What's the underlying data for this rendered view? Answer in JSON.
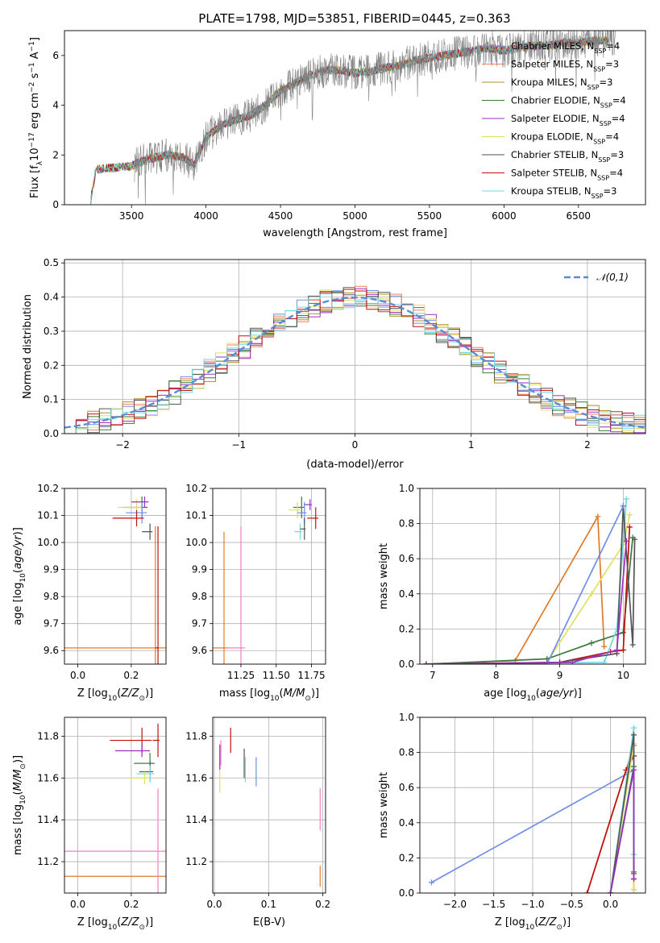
{
  "title": "PLATE=1798, MJD=53851, FIBERID=0445, z=0.363",
  "colors": {
    "chabrier_miles": "#6f8ee8",
    "salpeter_miles": "#f08060",
    "kroupa_miles": "#b09020",
    "chabrier_elodie": "#3a7a3a",
    "salpeter_elodie": "#9a2fc0",
    "kroupa_elodie": "#e0e060",
    "chabrier_stelib": "#555555",
    "salpeter_stelib": "#c01010",
    "kroupa_stelib": "#70d8e0",
    "data": "#808080",
    "gaussian": "#5b8bd8",
    "orange": "#e07b28",
    "pink": "#f080c0"
  },
  "chart_data": [
    {
      "id": "spectrum",
      "type": "line",
      "xlabel": "wavelength [Angstrom, rest frame]",
      "ylabel": "Flux [f_λ 10^-17 erg cm^-2 s^-1 A^-1]",
      "xlim": [
        3050,
        6950
      ],
      "ylim": [
        0,
        7
      ],
      "xticks": [
        "3500",
        "4000",
        "4500",
        "5000",
        "5500",
        "6000",
        "6500"
      ],
      "yticks": [
        "0",
        "2",
        "4",
        "6"
      ],
      "legend_position": "top-right",
      "legend": [
        "Chabrier MILES, N_SSP=4",
        "Salpeter MILES, N_SSP=3",
        "Kroupa MILES, N_SSP=3",
        "Chabrier ELODIE, N_SSP=4",
        "Salpeter ELODIE, N_SSP=4",
        "Kroupa ELODIE, N_SSP=4",
        "Chabrier STELIB, N_SSP=3",
        "Salpeter STELIB, N_SSP=4",
        "Kroupa STELIB, N_SSP=3"
      ],
      "trend": {
        "x": [
          3220,
          3260,
          3300,
          3400,
          3500,
          3550,
          3650,
          3750,
          3850,
          3920,
          4000,
          4100,
          4200,
          4300,
          4400,
          4500,
          4600,
          4700,
          4800,
          4900,
          5000,
          5100,
          5200,
          5300,
          5400,
          5500,
          5600,
          5700,
          5800,
          5900,
          6000,
          6100,
          6200,
          6300,
          6400,
          6500,
          6600,
          6700
        ],
        "y": [
          0,
          1.4,
          1.45,
          1.5,
          1.55,
          1.7,
          1.9,
          2.0,
          1.9,
          1.6,
          2.7,
          3.2,
          3.4,
          3.6,
          4.0,
          4.6,
          4.9,
          5.2,
          5.4,
          5.4,
          5.3,
          5.35,
          5.5,
          5.6,
          5.8,
          5.9,
          6.0,
          6.1,
          6.2,
          6.3,
          6.2,
          6.3,
          6.4,
          6.4,
          6.5,
          6.5,
          6.6,
          6.6
        ]
      }
    },
    {
      "id": "residuals",
      "type": "line",
      "xlabel": "(data-model)/error",
      "ylabel": "Normed distribution",
      "xlim": [
        -2.5,
        2.5
      ],
      "ylim": [
        0,
        0.51
      ],
      "xticks": [
        "−2",
        "−1",
        "0",
        "1",
        "2"
      ],
      "yticks": [
        "0.0",
        "0.1",
        "0.2",
        "0.3",
        "0.4",
        "0.5"
      ],
      "legend_position": "top-right",
      "legend": [
        "𝒩(0,1)"
      ],
      "gaussian": {
        "mean": 0,
        "sigma": 1
      }
    },
    {
      "id": "age-vs-Z",
      "type": "scatter",
      "xlabel": "Z [log10(Z/Z⊙)]",
      "ylabel": "age [log10(age/yr)]",
      "xlim": [
        -0.05,
        0.33
      ],
      "ylim": [
        9.55,
        10.2
      ],
      "xticks": [
        "0.0",
        "0.2"
      ],
      "yticks": [
        "9.6",
        "9.7",
        "9.8",
        "9.9",
        "10.0",
        "10.1",
        "10.2"
      ],
      "points": [
        {
          "x": 0.29,
          "y": 9.61,
          "xerr": 0.35,
          "yerr": 0.45,
          "series": "orange"
        },
        {
          "x": 0.3,
          "y": 9.61,
          "xerr": 0.01,
          "yerr": 0.45,
          "series": "salpeter_stelib"
        },
        {
          "x": 0.24,
          "y": 10.13,
          "xerr": 0.07,
          "yerr": 0.04,
          "series": "chabrier_elodie"
        },
        {
          "x": 0.22,
          "y": 10.13,
          "xerr": 0.07,
          "yerr": 0.03,
          "series": "kroupa_elodie"
        },
        {
          "x": 0.24,
          "y": 10.11,
          "xerr": 0.06,
          "yerr": 0.04,
          "series": "chabrier_miles"
        },
        {
          "x": 0.22,
          "y": 10.09,
          "xerr": 0.09,
          "yerr": 0.03,
          "series": "salpeter_stelib"
        },
        {
          "x": 0.27,
          "y": 10.04,
          "xerr": 0.03,
          "yerr": 0.03,
          "series": "kroupa_stelib"
        },
        {
          "x": 0.27,
          "y": 10.04,
          "xerr": 0.03,
          "yerr": 0.03,
          "series": "chabrier_stelib"
        },
        {
          "x": 0.25,
          "y": 10.15,
          "xerr": 0.05,
          "yerr": 0.02,
          "series": "salpeter_elodie"
        }
      ]
    },
    {
      "id": "age-vs-mass",
      "type": "scatter",
      "xlabel": "mass [log10(M/M⊙)]",
      "ylabel": "",
      "xlim": [
        11.05,
        11.85
      ],
      "ylim": [
        9.55,
        10.2
      ],
      "xticks": [
        "11.25",
        "11.50",
        "11.75"
      ],
      "yticks": [
        "9.6",
        "9.7",
        "9.8",
        "9.9",
        "10.0",
        "10.1",
        "10.2"
      ],
      "points": [
        {
          "x": 11.13,
          "y": 9.61,
          "xerr": 0.1,
          "yerr": 0.43,
          "series": "orange"
        },
        {
          "x": 11.25,
          "y": 9.61,
          "xerr": 0.1,
          "yerr": 0.45,
          "series": "pink"
        },
        {
          "x": 11.68,
          "y": 10.13,
          "xerr": 0.06,
          "yerr": 0.04,
          "series": "chabrier_elodie"
        },
        {
          "x": 11.65,
          "y": 10.12,
          "xerr": 0.06,
          "yerr": 0.03,
          "series": "kroupa_elodie"
        },
        {
          "x": 11.7,
          "y": 10.11,
          "xerr": 0.05,
          "yerr": 0.04,
          "series": "chabrier_miles"
        },
        {
          "x": 11.78,
          "y": 10.09,
          "xerr": 0.06,
          "yerr": 0.04,
          "series": "salpeter_stelib"
        },
        {
          "x": 11.67,
          "y": 10.04,
          "xerr": 0.04,
          "yerr": 0.03,
          "series": "kroupa_stelib"
        },
        {
          "x": 11.7,
          "y": 10.05,
          "xerr": 0.03,
          "yerr": 0.04,
          "series": "chabrier_stelib"
        },
        {
          "x": 11.74,
          "y": 10.14,
          "xerr": 0.04,
          "yerr": 0.02,
          "series": "salpeter_elodie"
        }
      ]
    },
    {
      "id": "mass-weight-vs-age",
      "type": "line",
      "xlabel": "age [log10(age/yr)]",
      "ylabel": "mass weight",
      "xlim": [
        6.8,
        10.35
      ],
      "ylim": [
        0,
        1.0
      ],
      "xticks": [
        "7",
        "8",
        "9",
        "10"
      ],
      "yticks": [
        "0.0",
        "0.2",
        "0.4",
        "0.6",
        "0.8",
        "1.0"
      ],
      "series": [
        {
          "key": "orange",
          "x": [
            6.9,
            8.3,
            9.6,
            9.7
          ],
          "y": [
            0.0,
            0.02,
            0.84,
            0.1
          ]
        },
        {
          "key": "kroupa_elodie",
          "x": [
            6.9,
            8.8,
            9.5,
            10.0,
            10.1
          ],
          "y": [
            0.0,
            0.01,
            0.4,
            0.68,
            0.85
          ]
        },
        {
          "key": "chabrier_elodie",
          "x": [
            6.9,
            8.8,
            9.5,
            10.0,
            10.15
          ],
          "y": [
            0.0,
            0.03,
            0.12,
            0.18,
            0.72
          ]
        },
        {
          "key": "salpeter_stelib",
          "x": [
            6.9,
            9.0,
            9.8,
            10.0,
            10.1
          ],
          "y": [
            0.0,
            0.01,
            0.07,
            0.08,
            0.78
          ]
        },
        {
          "key": "kroupa_stelib",
          "x": [
            6.9,
            9.7,
            9.9,
            10.05
          ],
          "y": [
            0.0,
            0.01,
            0.2,
            0.94
          ]
        },
        {
          "key": "chabrier_stelib",
          "x": [
            6.9,
            9.0,
            9.9,
            10.0,
            10.15,
            10.18
          ],
          "y": [
            0.0,
            0.01,
            0.06,
            0.9,
            0.11,
            0.71
          ]
        },
        {
          "key": "chabrier_miles",
          "x": [
            6.9,
            8.8,
            10.0
          ],
          "y": [
            0.0,
            0.0,
            0.9
          ]
        },
        {
          "key": "salpeter_elodie",
          "x": [
            6.9,
            9.2,
            9.9,
            10.05
          ],
          "y": [
            0.0,
            0.01,
            0.08,
            0.7
          ]
        }
      ]
    },
    {
      "id": "mass-vs-Z",
      "type": "scatter",
      "xlabel": "Z [log10(Z/Z⊙)]",
      "ylabel": "mass [log10(M/M⊙)]",
      "xlim": [
        -0.05,
        0.33
      ],
      "ylim": [
        11.05,
        11.89
      ],
      "xticks": [
        "0.0",
        "0.2"
      ],
      "yticks": [
        "11.2",
        "11.4",
        "11.6",
        "11.8"
      ],
      "points": [
        {
          "x": 0.29,
          "y": 11.13,
          "xerr": 0.35,
          "yerr": 0.0,
          "series": "orange"
        },
        {
          "x": 0.3,
          "y": 11.25,
          "xerr": 0.35,
          "yerr": 0.3,
          "series": "pink"
        },
        {
          "x": 0.24,
          "y": 11.78,
          "xerr": 0.12,
          "yerr": 0.06,
          "series": "salpeter_stelib"
        },
        {
          "x": 0.24,
          "y": 11.73,
          "xerr": 0.1,
          "yerr": 0.03,
          "series": "salpeter_elodie"
        },
        {
          "x": 0.27,
          "y": 11.67,
          "xerr": 0.06,
          "yerr": 0.05,
          "series": "chabrier_elodie"
        },
        {
          "x": 0.27,
          "y": 11.63,
          "xerr": 0.04,
          "yerr": 0.05,
          "series": "chabrier_stelib"
        },
        {
          "x": 0.27,
          "y": 11.62,
          "xerr": 0.05,
          "yerr": 0.04,
          "series": "kroupa_stelib"
        },
        {
          "x": 0.25,
          "y": 11.6,
          "xerr": 0.06,
          "yerr": 0.03,
          "series": "kroupa_elodie"
        },
        {
          "x": 0.3,
          "y": 11.78,
          "xerr": 0.02,
          "yerr": 0.08,
          "series": "salpeter_stelib"
        }
      ]
    },
    {
      "id": "mass-vs-EBV",
      "type": "scatter",
      "xlabel": "E(B-V)",
      "ylabel": "",
      "xlim": [
        -0.003,
        0.205
      ],
      "ylim": [
        11.05,
        11.89
      ],
      "xticks": [
        "0.0",
        "0.1",
        "0.2"
      ],
      "yticks": [
        "11.2",
        "11.4",
        "11.6",
        "11.8"
      ],
      "points": [
        {
          "x": 0.195,
          "y": 11.13,
          "xerr": 0.0,
          "yerr": 0.05,
          "series": "orange"
        },
        {
          "x": 0.195,
          "y": 11.45,
          "xerr": 0.0,
          "yerr": 0.1,
          "series": "pink"
        },
        {
          "x": 0.01,
          "y": 11.6,
          "xerr": 0.0,
          "yerr": 0.07,
          "series": "kroupa_elodie"
        },
        {
          "x": 0.01,
          "y": 11.7,
          "xerr": 0.0,
          "yerr": 0.06,
          "series": "salpeter_elodie"
        },
        {
          "x": 0.012,
          "y": 11.72,
          "xerr": 0.0,
          "yerr": 0.06,
          "series": "pink"
        },
        {
          "x": 0.03,
          "y": 11.78,
          "xerr": 0.0,
          "yerr": 0.06,
          "series": "salpeter_stelib"
        },
        {
          "x": 0.055,
          "y": 11.67,
          "xerr": 0.0,
          "yerr": 0.07,
          "series": "chabrier_stelib"
        },
        {
          "x": 0.057,
          "y": 11.64,
          "xerr": 0.0,
          "yerr": 0.06,
          "series": "kroupa_stelib"
        },
        {
          "x": 0.077,
          "y": 11.63,
          "xerr": 0.0,
          "yerr": 0.07,
          "series": "chabrier_miles"
        }
      ]
    },
    {
      "id": "mass-weight-vs-Z",
      "type": "line",
      "xlabel": "Z [log10(Z/Z⊙)]",
      "ylabel": "mass weight",
      "xlim": [
        -2.45,
        0.45
      ],
      "ylim": [
        0,
        1.0
      ],
      "xticks": [
        "−2.0",
        "−1.5",
        "−1.0",
        "−0.5",
        "0.0"
      ],
      "yticks": [
        "0.0",
        "0.2",
        "0.4",
        "0.6",
        "0.8",
        "1.0"
      ],
      "series": [
        {
          "key": "chabrier_miles",
          "x": [
            -2.3,
            0.3,
            0.3
          ],
          "y": [
            0.06,
            0.7,
            0.02
          ]
        },
        {
          "key": "orange",
          "x": [
            -0.3,
            0.3,
            0.3
          ],
          "y": [
            0.0,
            0.84,
            0.02
          ]
        },
        {
          "key": "salpeter_stelib",
          "x": [
            -0.3,
            0.2,
            0.3,
            0.3
          ],
          "y": [
            0.0,
            0.7,
            0.78,
            0.08
          ]
        },
        {
          "key": "kroupa_elodie",
          "x": [
            0.0,
            0.3,
            0.3
          ],
          "y": [
            0.0,
            0.85,
            0.02
          ]
        },
        {
          "key": "chabrier_elodie",
          "x": [
            0.0,
            0.3,
            0.3
          ],
          "y": [
            0.0,
            0.72,
            0.12
          ]
        },
        {
          "key": "kroupa_stelib",
          "x": [
            0.0,
            0.3,
            0.3
          ],
          "y": [
            0.0,
            0.94,
            0.22
          ]
        },
        {
          "key": "chabrier_stelib",
          "x": [
            0.0,
            0.3,
            0.3
          ],
          "y": [
            0.0,
            0.9,
            0.11
          ]
        },
        {
          "key": "salpeter_elodie",
          "x": [
            0.0,
            0.3,
            0.3
          ],
          "y": [
            0.0,
            0.7,
            0.08
          ]
        }
      ]
    }
  ]
}
